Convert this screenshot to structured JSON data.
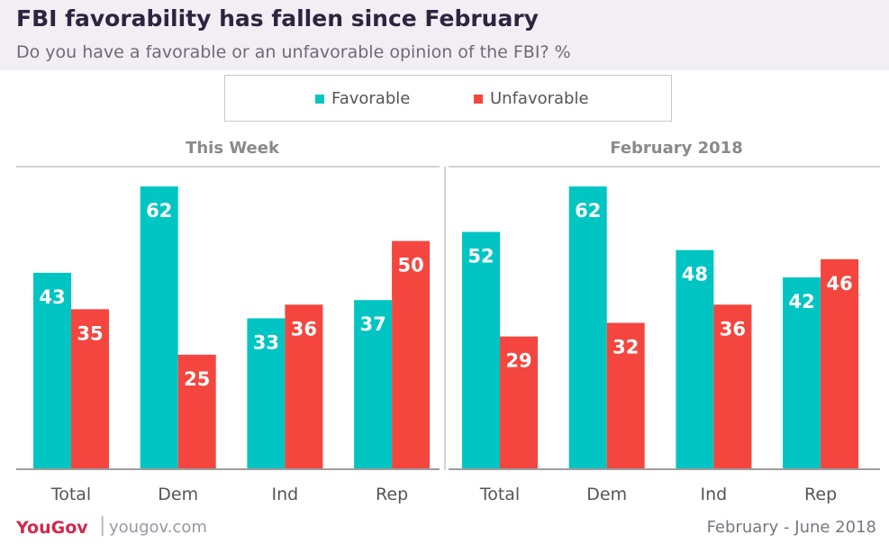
{
  "header": {
    "title": "FBI favorability has fallen since February",
    "subtitle": "Do you have a favorable or an unfavorable opinion of the FBI? %"
  },
  "legend": {
    "favorable_label": "Favorable",
    "unfavorable_label": "Unfavorable"
  },
  "colors": {
    "favorable": "#00c5c3",
    "unfavorable": "#f4463e",
    "header_band": "#f1eff4",
    "title": "#2b2540",
    "brand": "#d2294b"
  },
  "chart_data": {
    "type": "bar",
    "ylim": [
      0,
      64
    ],
    "panels": [
      {
        "title": "This Week",
        "categories": [
          "Total",
          "Dem",
          "Ind",
          "Rep"
        ],
        "series": [
          {
            "name": "Favorable",
            "values": [
              43,
              62,
              33,
              37
            ]
          },
          {
            "name": "Unfavorable",
            "values": [
              35,
              25,
              36,
              50
            ]
          }
        ]
      },
      {
        "title": "February 2018",
        "categories": [
          "Total",
          "Dem",
          "Ind",
          "Rep"
        ],
        "series": [
          {
            "name": "Favorable",
            "values": [
              52,
              62,
              48,
              42
            ]
          },
          {
            "name": "Unfavorable",
            "values": [
              29,
              32,
              36,
              46
            ]
          }
        ]
      }
    ]
  },
  "footer": {
    "logo": "YouGov",
    "separator": "|",
    "site": "yougov.com",
    "date_range": "February - June 2018"
  }
}
